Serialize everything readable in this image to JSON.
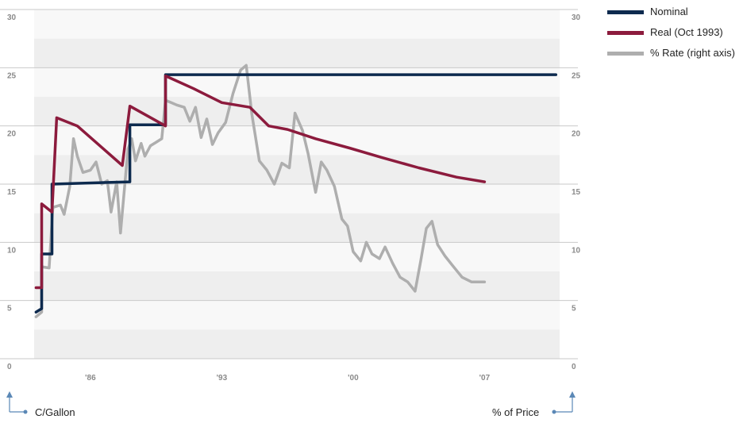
{
  "chart_data": {
    "type": "line",
    "ylim": [
      0,
      30
    ],
    "y2lim": [
      0,
      30
    ],
    "yticks": [
      0,
      5,
      10,
      15,
      20,
      25,
      30
    ],
    "y2ticks": [
      0,
      5,
      10,
      15,
      20,
      25,
      30
    ],
    "xlim": [
      1983,
      2011
    ],
    "xticks": [
      {
        "value": 1986,
        "label": "'86"
      },
      {
        "value": 1993,
        "label": "'93"
      },
      {
        "value": 2000,
        "label": "'00"
      },
      {
        "value": 2007,
        "label": "'07"
      }
    ],
    "ylabel": "C/Gallon",
    "y2label": "% of Price",
    "grid": "horizontal",
    "legend_position": "top-right",
    "series": [
      {
        "name": "Nominal",
        "color": "#0d2a4e",
        "axis": "left",
        "points": [
          [
            1983.1,
            4.0
          ],
          [
            1983.4,
            4.3
          ],
          [
            1983.4,
            9.0
          ],
          [
            1983.8,
            9.0
          ],
          [
            1983.95,
            9.0
          ],
          [
            1983.95,
            15.0
          ],
          [
            1988.1,
            15.2
          ],
          [
            1988.1,
            20.1
          ],
          [
            1990.0,
            20.1
          ],
          [
            1990.0,
            24.4
          ],
          [
            2010.8,
            24.4
          ]
        ]
      },
      {
        "name": "Real (Oct 1993)",
        "color": "#8c1b3d",
        "axis": "left",
        "points": [
          [
            1983.1,
            6.1
          ],
          [
            1983.4,
            6.1
          ],
          [
            1983.4,
            13.3
          ],
          [
            1983.95,
            12.6
          ],
          [
            1984.2,
            20.7
          ],
          [
            1985.3,
            20.0
          ],
          [
            1987.7,
            16.6
          ],
          [
            1988.1,
            21.7
          ],
          [
            1990.0,
            20.0
          ],
          [
            1990.0,
            24.3
          ],
          [
            1991.5,
            23.2
          ],
          [
            1993.0,
            22.0
          ],
          [
            1994.5,
            21.6
          ],
          [
            1995.5,
            20.0
          ],
          [
            1996.5,
            19.7
          ],
          [
            1998.0,
            18.9
          ],
          [
            1999.8,
            18.1
          ],
          [
            2001.5,
            17.3
          ],
          [
            2003.5,
            16.4
          ],
          [
            2005.5,
            15.6
          ],
          [
            2007.0,
            15.2
          ]
        ]
      },
      {
        "name": "% Rate (right axis)",
        "color": "#aeaeae",
        "axis": "right",
        "points": [
          [
            1983.1,
            3.6
          ],
          [
            1983.4,
            4.0
          ],
          [
            1983.4,
            7.9
          ],
          [
            1983.8,
            7.8
          ],
          [
            1984.0,
            13.0
          ],
          [
            1984.4,
            13.2
          ],
          [
            1984.6,
            12.4
          ],
          [
            1984.9,
            14.8
          ],
          [
            1985.1,
            18.9
          ],
          [
            1985.3,
            17.4
          ],
          [
            1985.6,
            16.0
          ],
          [
            1986.0,
            16.2
          ],
          [
            1986.3,
            16.9
          ],
          [
            1986.6,
            15.0
          ],
          [
            1986.9,
            15.3
          ],
          [
            1987.1,
            12.6
          ],
          [
            1987.4,
            15.2
          ],
          [
            1987.6,
            10.8
          ],
          [
            1988.0,
            18.0
          ],
          [
            1988.2,
            18.9
          ],
          [
            1988.4,
            17.0
          ],
          [
            1988.7,
            18.5
          ],
          [
            1988.9,
            17.4
          ],
          [
            1989.2,
            18.3
          ],
          [
            1989.5,
            18.6
          ],
          [
            1989.8,
            18.9
          ],
          [
            1990.0,
            22.2
          ],
          [
            1990.3,
            22.0
          ],
          [
            1990.6,
            21.8
          ],
          [
            1991.0,
            21.6
          ],
          [
            1991.3,
            20.4
          ],
          [
            1991.6,
            21.6
          ],
          [
            1991.9,
            19.0
          ],
          [
            1992.2,
            20.6
          ],
          [
            1992.5,
            18.4
          ],
          [
            1992.8,
            19.4
          ],
          [
            1993.2,
            20.3
          ],
          [
            1993.6,
            22.8
          ],
          [
            1994.0,
            24.8
          ],
          [
            1994.3,
            25.2
          ],
          [
            1994.6,
            21.0
          ],
          [
            1995.0,
            17.0
          ],
          [
            1995.4,
            16.2
          ],
          [
            1995.8,
            15.0
          ],
          [
            1996.2,
            16.8
          ],
          [
            1996.6,
            16.4
          ],
          [
            1996.9,
            21.1
          ],
          [
            1997.3,
            19.6
          ],
          [
            1997.6,
            17.6
          ],
          [
            1998.0,
            14.3
          ],
          [
            1998.3,
            16.9
          ],
          [
            1998.6,
            16.2
          ],
          [
            1999.0,
            14.8
          ],
          [
            1999.4,
            12.0
          ],
          [
            1999.7,
            11.4
          ],
          [
            2000.0,
            9.2
          ],
          [
            2000.4,
            8.4
          ],
          [
            2000.7,
            10.0
          ],
          [
            2001.0,
            9.0
          ],
          [
            2001.4,
            8.6
          ],
          [
            2001.7,
            9.6
          ],
          [
            2002.1,
            8.2
          ],
          [
            2002.5,
            7.0
          ],
          [
            2002.9,
            6.6
          ],
          [
            2003.3,
            5.8
          ],
          [
            2003.6,
            8.4
          ],
          [
            2003.9,
            11.2
          ],
          [
            2004.2,
            11.8
          ],
          [
            2004.5,
            9.8
          ],
          [
            2004.9,
            8.8
          ],
          [
            2005.3,
            8.0
          ],
          [
            2005.8,
            7.0
          ],
          [
            2006.3,
            6.6
          ],
          [
            2006.6,
            6.6
          ],
          [
            2007.0,
            6.6
          ]
        ]
      }
    ]
  },
  "legend": {
    "items": [
      {
        "label": "Nominal",
        "color": "#0d2a4e"
      },
      {
        "label": "Real (Oct 1993)",
        "color": "#8c1b3d"
      },
      {
        "label": "% Rate (right axis)",
        "color": "#aeaeae"
      }
    ]
  },
  "axes": {
    "left_title": "C/Gallon",
    "right_title": "% of Price",
    "icon_color": "#5b88b6"
  }
}
